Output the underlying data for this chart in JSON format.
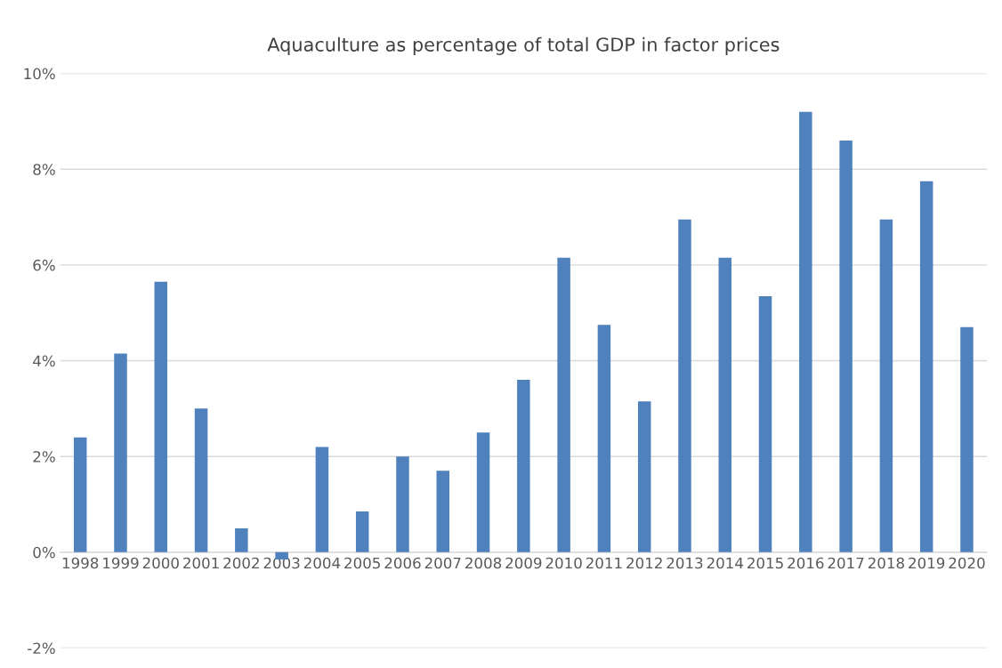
{
  "chart_data": {
    "type": "bar",
    "title": "Aquaculture as percentage of total GDP in factor prices",
    "categories": [
      "1998",
      "1999",
      "2000",
      "2001",
      "2002",
      "2003",
      "2004",
      "2005",
      "2006",
      "2007",
      "2008",
      "2009",
      "2010",
      "2011",
      "2012",
      "2013",
      "2014",
      "2015",
      "2016",
      "2017",
      "2018",
      "2019",
      "2020"
    ],
    "values": [
      2.4,
      4.15,
      5.65,
      3.0,
      0.5,
      -0.15,
      2.2,
      0.85,
      2.0,
      1.7,
      2.5,
      3.6,
      6.15,
      4.75,
      3.15,
      6.95,
      6.15,
      5.35,
      9.2,
      8.6,
      6.95,
      7.75,
      4.7
    ],
    "color": "#4f81bd",
    "ylim": [
      -2,
      10
    ],
    "yticks": [
      {
        "value": -2,
        "label": "-2%"
      },
      {
        "value": 0,
        "label": "0%"
      },
      {
        "value": 2,
        "label": "2%"
      },
      {
        "value": 4,
        "label": "4%"
      },
      {
        "value": 6,
        "label": "6%"
      },
      {
        "value": 8,
        "label": "8%"
      },
      {
        "value": 10,
        "label": "10%"
      }
    ],
    "grid": "y"
  }
}
